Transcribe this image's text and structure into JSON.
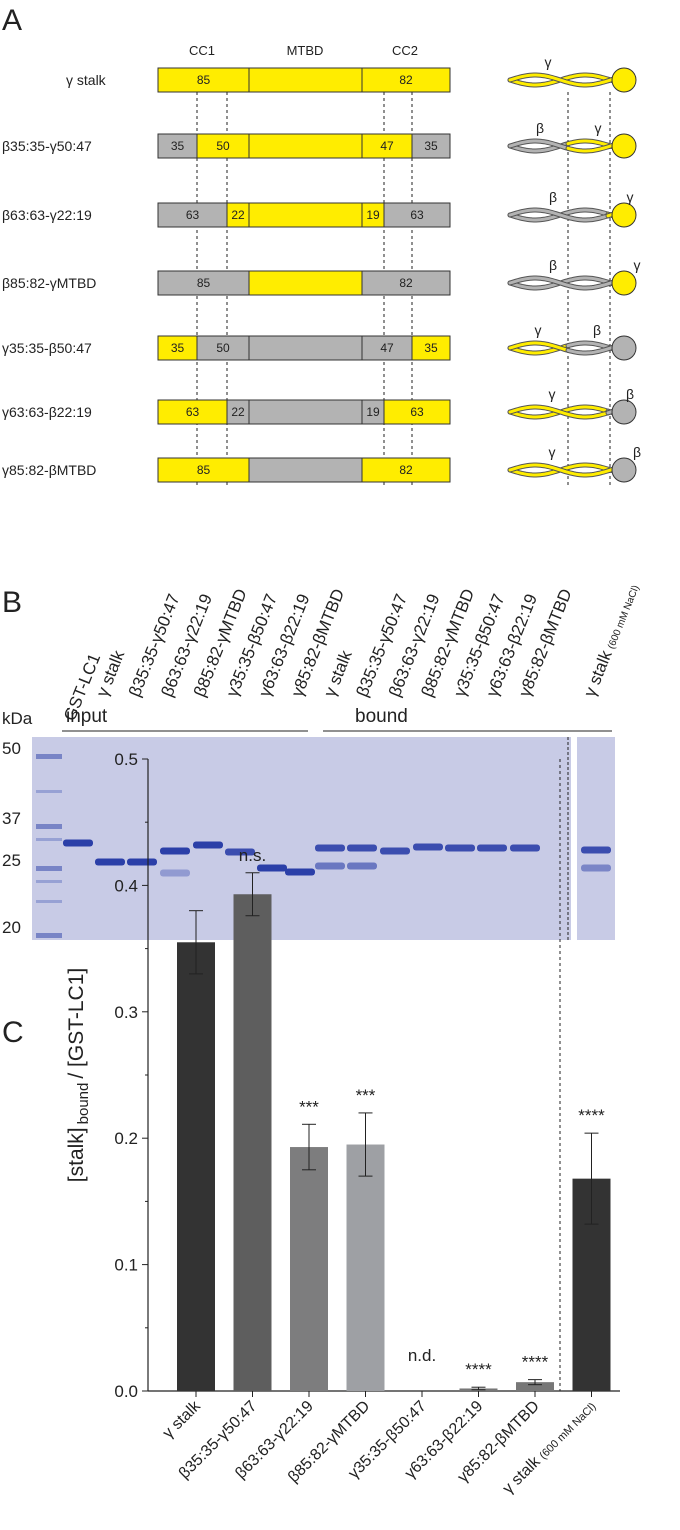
{
  "panel_a": {
    "letter": "A",
    "domains": [
      "CC1",
      "MTBD",
      "CC2"
    ],
    "rows": [
      {
        "name": "γ stalk",
        "segments": [
          {
            "label": 85,
            "color": "#ffed00"
          },
          {
            "color": "#ffed00"
          },
          {
            "label": 82,
            "color": "#ffed00"
          }
        ],
        "schematic_labels": [
          "γ"
        ]
      },
      {
        "name": "β35:35-γ50:47",
        "segments": [
          {
            "label": 35,
            "color": "#b3b3b3"
          },
          {
            "label": 50,
            "color": "#ffed00"
          },
          {
            "color": "#ffed00"
          },
          {
            "label": 47,
            "color": "#ffed00"
          },
          {
            "label": 35,
            "color": "#b3b3b3"
          }
        ],
        "schematic_labels": [
          "β",
          "γ"
        ]
      },
      {
        "name": "β63:63-γ22:19",
        "segments": [
          {
            "label": 63,
            "color": "#b3b3b3"
          },
          {
            "label": 22,
            "color": "#ffed00"
          },
          {
            "color": "#ffed00"
          },
          {
            "label": 19,
            "color": "#ffed00"
          },
          {
            "label": 63,
            "color": "#b3b3b3"
          }
        ],
        "schematic_labels": [
          "β",
          "γ"
        ]
      },
      {
        "name": "β85:82-γMTBD",
        "segments": [
          {
            "label": 85,
            "color": "#b3b3b3"
          },
          {
            "color": "#ffed00"
          },
          {
            "label": 82,
            "color": "#b3b3b3"
          }
        ],
        "schematic_labels": [
          "β",
          "γ"
        ]
      },
      {
        "name": "γ35:35-β50:47",
        "segments": [
          {
            "label": 35,
            "color": "#ffed00"
          },
          {
            "label": 50,
            "color": "#b3b3b3"
          },
          {
            "color": "#b3b3b3"
          },
          {
            "label": 47,
            "color": "#b3b3b3"
          },
          {
            "label": 35,
            "color": "#ffed00"
          }
        ],
        "schematic_labels": [
          "γ",
          "β"
        ]
      },
      {
        "name": "γ63:63-β22:19",
        "segments": [
          {
            "label": 63,
            "color": "#ffed00"
          },
          {
            "label": 22,
            "color": "#b3b3b3"
          },
          {
            "color": "#b3b3b3"
          },
          {
            "label": 19,
            "color": "#b3b3b3"
          },
          {
            "label": 63,
            "color": "#ffed00"
          }
        ],
        "schematic_labels": [
          "γ",
          "β"
        ]
      },
      {
        "name": "γ85:82-βMTBD",
        "segments": [
          {
            "label": 85,
            "color": "#ffed00"
          },
          {
            "color": "#b3b3b3"
          },
          {
            "label": 82,
            "color": "#ffed00"
          }
        ],
        "schematic_labels": [
          "γ",
          "β"
        ]
      }
    ]
  },
  "panel_b": {
    "letter": "B",
    "lanes": [
      "GST-LC1",
      "γ stalk",
      "β35:35-γ50:47",
      "β63:63-γ22:19",
      "β85:82-γMTBD",
      "γ35:35-β50:47",
      "γ63:63-β22:19",
      "γ85:82-βMTBD",
      "γ stalk",
      "β35:35-γ50:47",
      "β63:63-γ22:19",
      "β85:82-γMTBD",
      "γ35:35-β50:47",
      "γ63:63-β22:19",
      "γ85:82-βMTBD",
      "γ stalk"
    ],
    "last_lane_note": "(600 mM NaCl)",
    "groups": [
      "input",
      "bound"
    ],
    "unit": "kDa",
    "markers": [
      50,
      37,
      25,
      20
    ]
  },
  "chart_data": {
    "type": "bar",
    "letter": "C",
    "ylabel": {
      "main": "[stalk]",
      "sub": "bound",
      "rest": "/ [GST-LC1]"
    },
    "categories": [
      "γ stalk",
      "β35:35-γ50:47",
      "β63:63-γ22:19",
      "β85:82-γMTBD",
      "γ35:35-β50:47",
      "γ63:63-β22:19",
      "γ85:82-βMTBD",
      "γ stalk"
    ],
    "last_category_note": "(600 mM NaCl)",
    "values": [
      0.355,
      0.393,
      0.193,
      0.195,
      null,
      0.002,
      0.007,
      0.168
    ],
    "errors": [
      0.025,
      0.017,
      0.018,
      0.025,
      null,
      0.001,
      0.002,
      0.036
    ],
    "colors": [
      "#333333",
      "#5e5e5e",
      "#7d7d7e",
      "#9ea0a4",
      "#777777",
      "#777777",
      "#777777",
      "#333333"
    ],
    "significance": [
      null,
      "n.s.",
      "***",
      "***",
      "n.d.",
      "****",
      "****",
      "****"
    ],
    "ylim": [
      0,
      0.5
    ],
    "yticks": [
      {
        "value": 0,
        "label": "0.0"
      },
      0.1,
      0.2,
      0.3,
      0.4,
      0.5
    ]
  }
}
